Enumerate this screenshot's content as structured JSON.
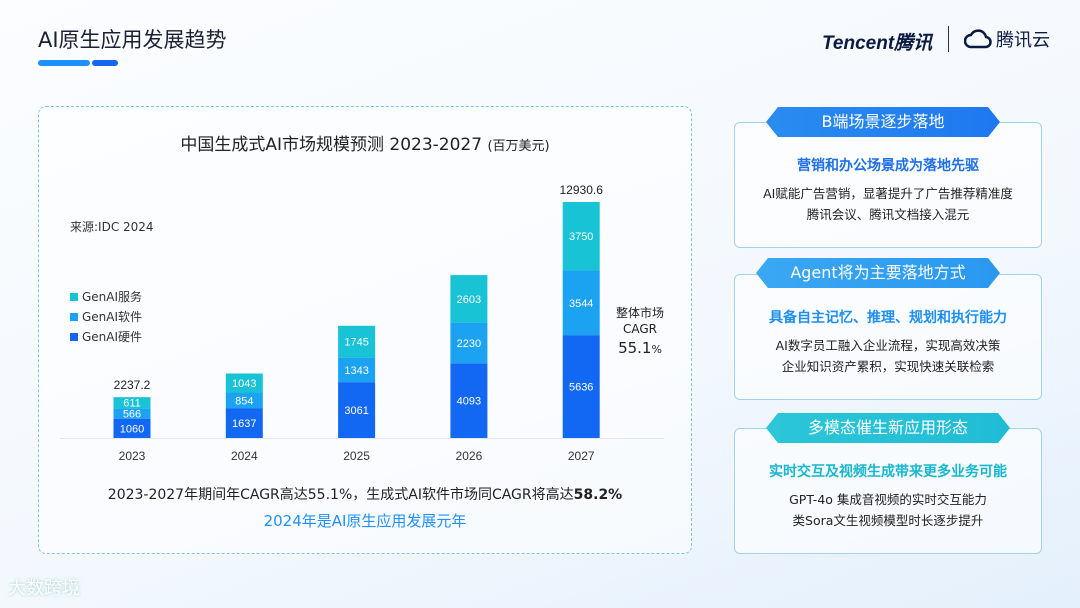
{
  "header": {
    "title": "AI原生应用发展趋势",
    "logo_tencent": "Tencent腾讯",
    "logo_cloud": "腾讯云"
  },
  "colors": {
    "hardware": "#1268f3",
    "software": "#1ba3f2",
    "service": "#18c3d6",
    "accent": "#1e90ff"
  },
  "chart_data": {
    "type": "bar",
    "stacked": true,
    "title": "中国生成式AI市场规模预测 2023-2027",
    "unit": "(百万美元)",
    "source": "来源:IDC 2024",
    "categories": [
      "2023",
      "2024",
      "2025",
      "2026",
      "2027"
    ],
    "series": [
      {
        "name": "GenAI硬件",
        "values": [
          1060,
          1637,
          3061,
          4093,
          5636
        ]
      },
      {
        "name": "GenAI软件",
        "values": [
          566,
          854,
          1343,
          2230,
          3544
        ]
      },
      {
        "name": "GenAI服务",
        "values": [
          611,
          1043,
          1745,
          2603,
          3750
        ]
      }
    ],
    "totals": [
      "2237.2",
      "",
      "",
      "",
      "12930.6"
    ],
    "legend_placement": "left",
    "grid": false,
    "annotation": {
      "label1": "整体市场",
      "label2": "CAGR",
      "value": "55.1",
      "unit": "%"
    }
  },
  "summary": {
    "text": "2023-2027年期间年CAGR高达55.1%，生成式AI软件市场同CAGR将高达",
    "bold": "58.2%",
    "highlight": "2024年是AI原生应用发展元年"
  },
  "cards": [
    {
      "tag": "B端场景逐步落地",
      "heading": "营销和办公场景成为落地先驱",
      "lines": [
        "AI赋能广告营销，显著提升了广告推荐精准度",
        "腾讯会议、腾讯文档接入混元"
      ]
    },
    {
      "tag": "Agent将为主要落地方式",
      "heading": "具备自主记忆、推理、规划和执行能力",
      "lines": [
        "AI数字员工融入企业流程，实现高效决策",
        "企业知识资产累积，实现快速关联检索"
      ]
    },
    {
      "tag": "多模态催生新应用形态",
      "heading": "实时交互及视频生成带来更多业务可能",
      "lines": [
        "GPT-4o 集成音视频的实时交互能力",
        "类Sora文生视频模型时长逐步提升"
      ]
    }
  ],
  "footer": {
    "logo": "大数跨境"
  }
}
